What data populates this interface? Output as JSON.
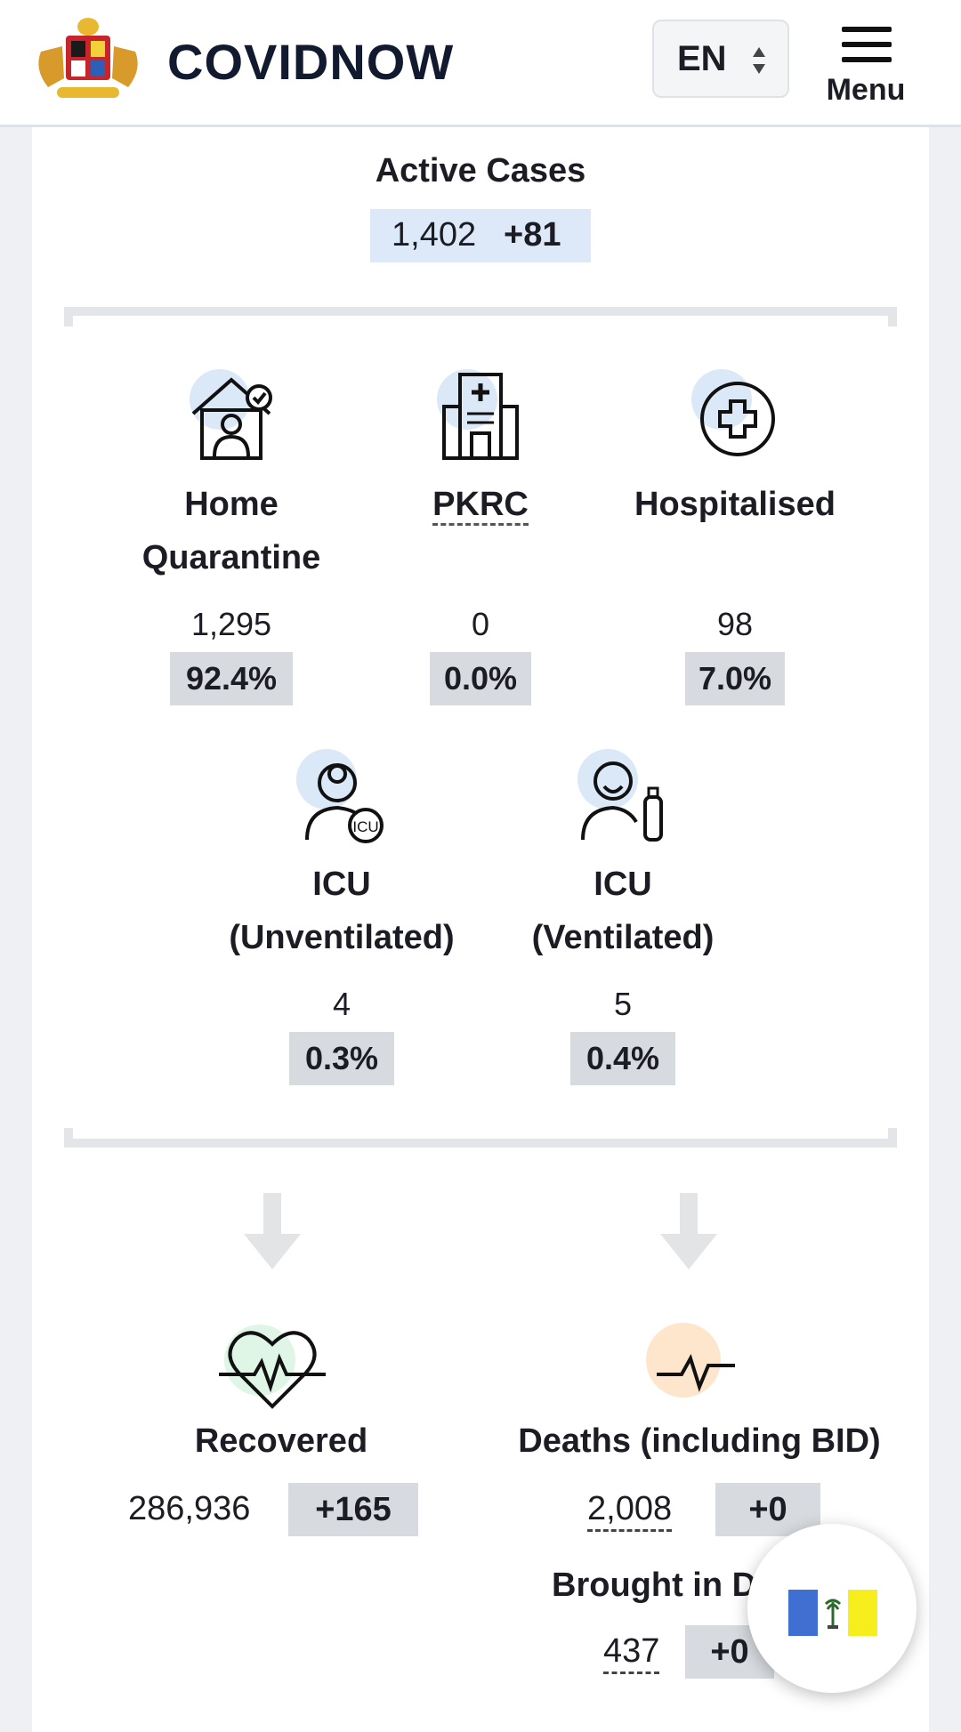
{
  "header": {
    "app_title": "COVIDNOW",
    "language": "EN",
    "menu_label": "Menu"
  },
  "active": {
    "title": "Active Cases",
    "value": "1,402",
    "delta": "+81"
  },
  "breakdown": [
    {
      "label_line1": "Home",
      "label_line2": "Quarantine",
      "value": "1,295",
      "percent": "92.4%"
    },
    {
      "label_line1": "PKRC",
      "label_line2": "",
      "value": "0",
      "percent": "0.0%"
    },
    {
      "label_line1": "Hospitalised",
      "label_line2": "",
      "value": "98",
      "percent": "7.0%"
    },
    {
      "label_line1": "ICU",
      "label_line2": "(Unventilated)",
      "value": "4",
      "percent": "0.3%"
    },
    {
      "label_line1": "ICU",
      "label_line2": "(Ventilated)",
      "value": "5",
      "percent": "0.4%"
    }
  ],
  "outcomes": {
    "recovered": {
      "label": "Recovered",
      "value": "286,936",
      "delta": "+165"
    },
    "deaths": {
      "label": "Deaths (including BID)",
      "value": "2,008",
      "delta": "+0"
    },
    "bid": {
      "label": "Brought in D",
      "value": "437",
      "delta": "+0"
    }
  },
  "colors": {
    "accent_blue_badge": "#dde9f8",
    "gray_badge": "#d7dade",
    "icon_blue_bg": "#dbe8f8",
    "icon_green_bg": "#dff5e6",
    "icon_orange_bg": "#fde6cc"
  },
  "icons": {
    "home_quarantine": "house-person-check-icon",
    "pkrc": "hospital-building-icon",
    "hospitalised": "medical-cross-circle-icon",
    "icu_unventilated": "doctor-icu-icon",
    "icu_ventilated": "patient-oxygen-icon",
    "recovered": "heart-pulse-icon",
    "deaths": "flatline-pulse-icon",
    "state_flag": "penang-flag-icon"
  }
}
